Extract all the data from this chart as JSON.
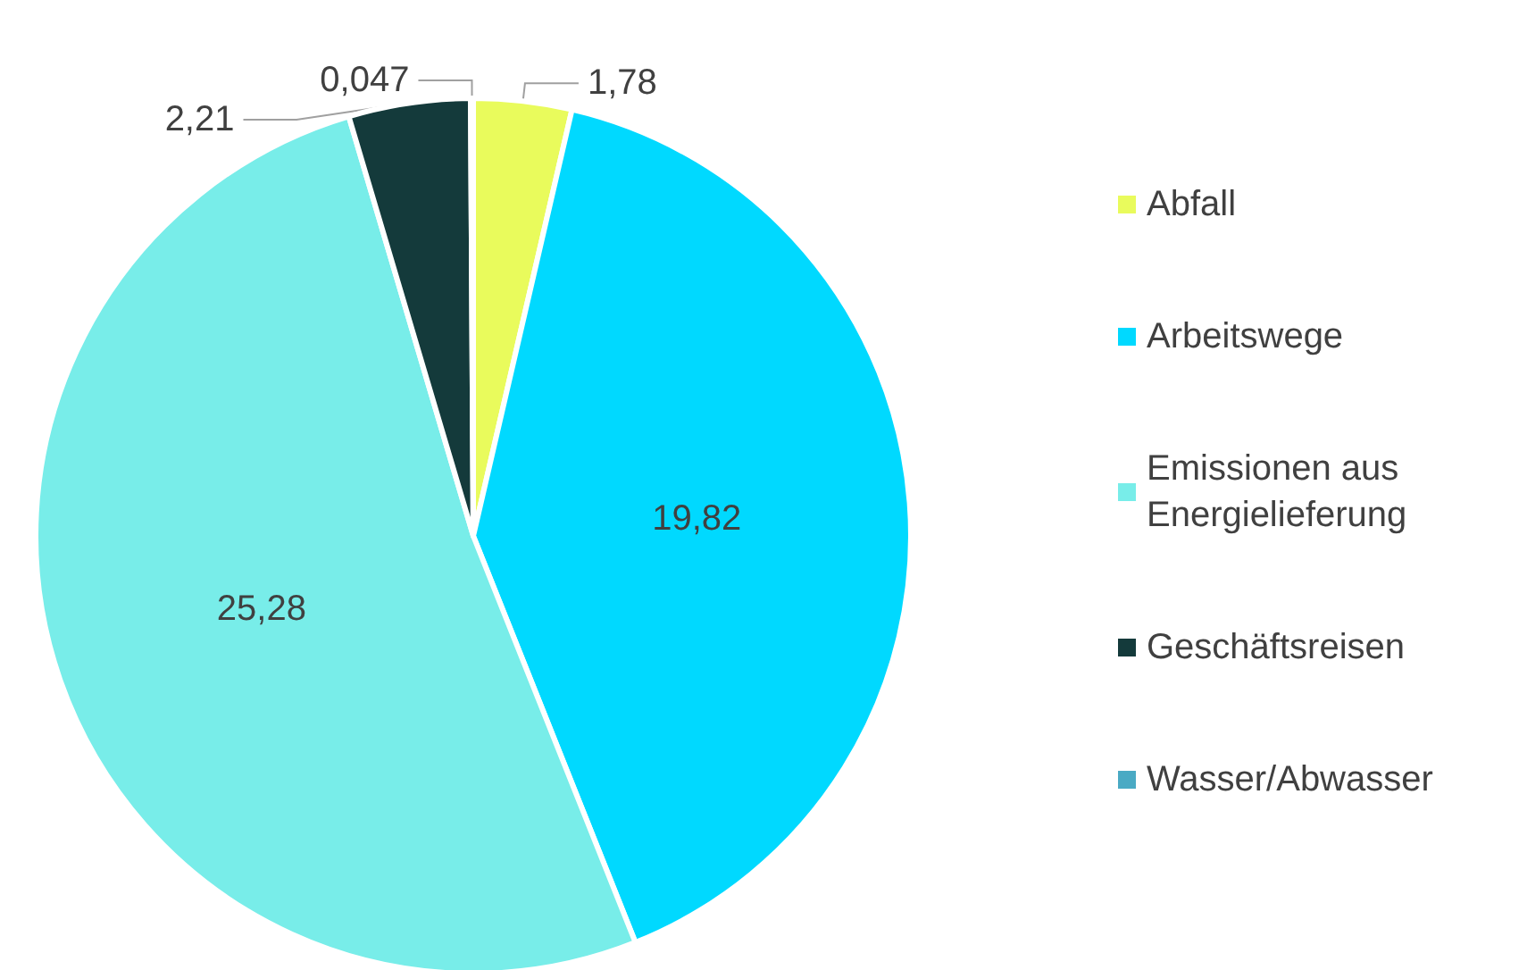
{
  "chart_data": {
    "type": "pie",
    "categories": [
      "Abfall",
      "Arbeitswege",
      "Emissionen aus Energielieferung",
      "Geschäftsreisen",
      "Wasser/Abwasser"
    ],
    "values": [
      1.78,
      19.82,
      25.28,
      2.21,
      0.047
    ],
    "colors": [
      "#e9fb5c",
      "#00d9ff",
      "#78ede9",
      "#143a3b",
      "#4aaac4"
    ],
    "value_labels": [
      "1,78",
      "19,82",
      "25,28",
      "2,21",
      "0,047"
    ],
    "legend": "right"
  }
}
